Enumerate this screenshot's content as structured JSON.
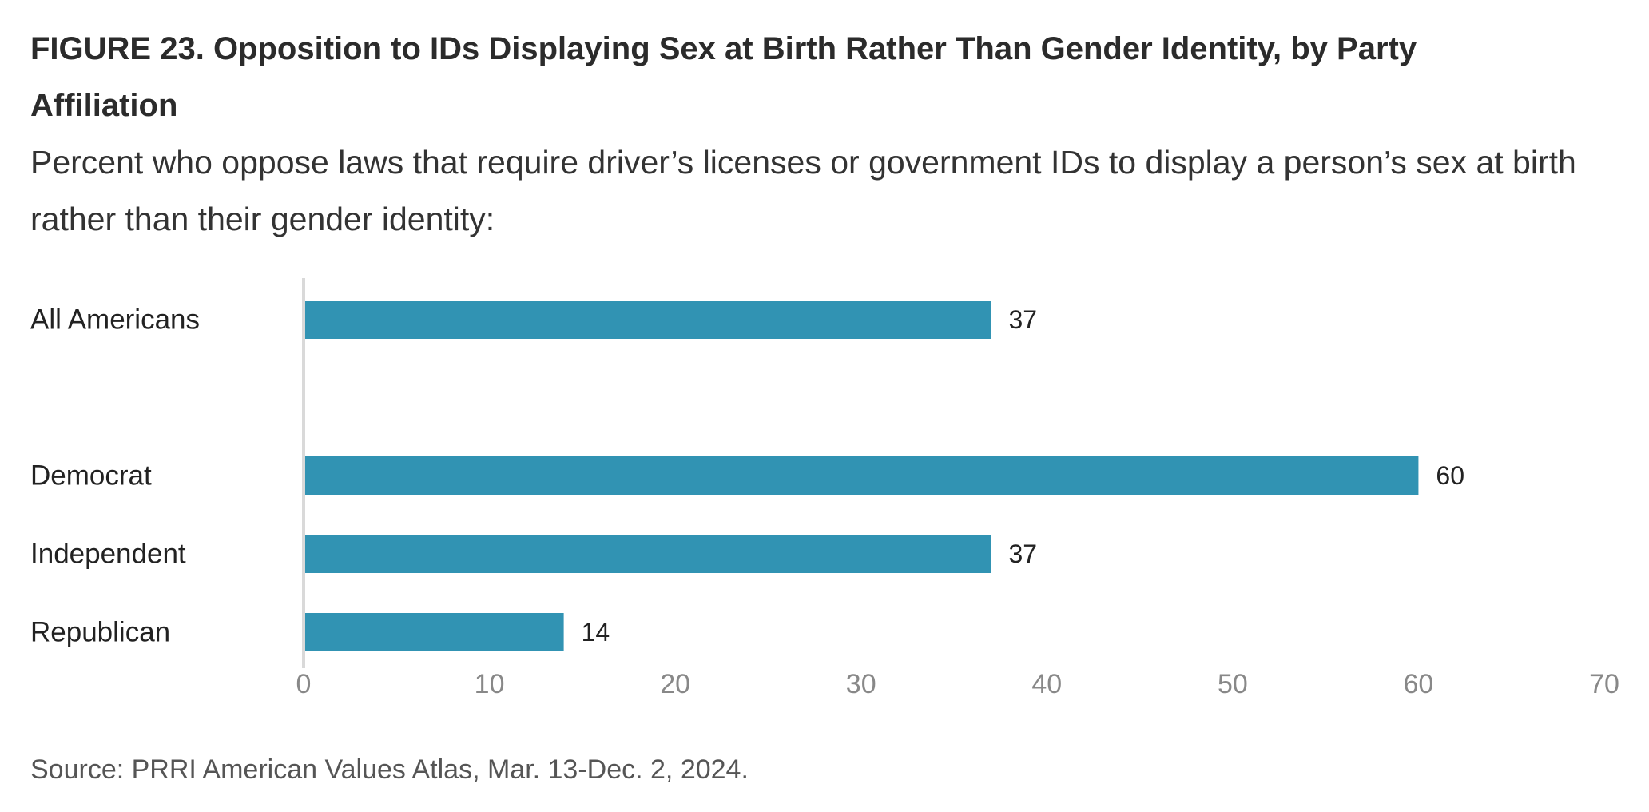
{
  "chart_data": {
    "type": "bar",
    "orientation": "horizontal",
    "title": "FIGURE 23. Opposition to IDs Displaying Sex at Birth Rather Than Gender Identity, by Party Affiliation",
    "subtitle": "Percent who oppose laws that require driver’s licenses or government IDs to display a person’s sex at birth rather than their gender identity:",
    "categories": [
      "All Americans",
      "Democrat",
      "Independent",
      "Republican"
    ],
    "values": [
      37,
      60,
      37,
      14
    ],
    "xlim": [
      0,
      70
    ],
    "xticks": [
      0,
      10,
      20,
      30,
      40,
      50,
      60,
      70
    ],
    "grid": false,
    "bar_color": "#3193b3",
    "source": "Source: PRRI American Values Atlas, Mar. 13-Dec. 2, 2024."
  }
}
